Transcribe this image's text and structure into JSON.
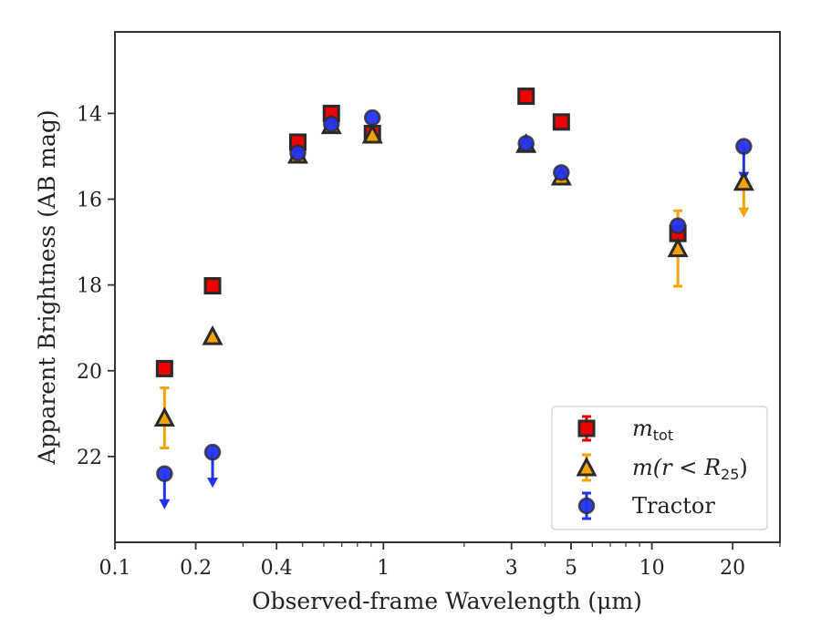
{
  "chart_data": {
    "type": "scatter",
    "xlabel": "Observed-frame Wavelength (μm)",
    "ylabel": "Apparent Brightness (AB mag)",
    "x_scale": "log",
    "xlim": [
      0.1,
      30
    ],
    "ylim": [
      24.0,
      12.1
    ],
    "y_inverted": true,
    "x_ticks": [
      0.1,
      0.2,
      0.4,
      1,
      3,
      5,
      10,
      20
    ],
    "x_tick_labels": [
      "0.1",
      "0.2",
      "0.4",
      "1",
      "3",
      "5",
      "10",
      "20"
    ],
    "y_ticks": [
      14,
      16,
      18,
      20,
      22
    ],
    "y_tick_labels": [
      "14",
      "16",
      "18",
      "20",
      "22"
    ],
    "grid": false,
    "legend_position": "lower-right",
    "legend_entries": [
      {
        "text": "m",
        "subscript": "tot"
      },
      {
        "text": "m(r < R",
        "subscript": "25",
        "suffix": ")"
      },
      {
        "text": "Tractor"
      }
    ],
    "colors": {
      "m_tot": "#ee0000",
      "m_r25": "#f5a300",
      "tractor": "#2233ee",
      "edge": "#2a2a2a"
    },
    "series": [
      {
        "name": "m_tot",
        "marker": "square",
        "points": [
          {
            "x": 0.153,
            "y": 19.95
          },
          {
            "x": 0.231,
            "y": 18.02
          },
          {
            "x": 0.48,
            "y": 14.67
          },
          {
            "x": 0.64,
            "y": 14.0
          },
          {
            "x": 0.91,
            "y": 14.47
          },
          {
            "x": 3.4,
            "y": 13.6
          },
          {
            "x": 4.6,
            "y": 14.2
          },
          {
            "x": 12.5,
            "y": 16.8,
            "yerr": 0.15
          }
        ]
      },
      {
        "name": "m(r<R25)",
        "marker": "triangle",
        "points": [
          {
            "x": 0.153,
            "y": 21.1,
            "yerr": 0.7
          },
          {
            "x": 0.231,
            "y": 19.2
          },
          {
            "x": 0.48,
            "y": 14.97
          },
          {
            "x": 0.64,
            "y": 14.28
          },
          {
            "x": 0.91,
            "y": 14.5
          },
          {
            "x": 3.4,
            "y": 14.72
          },
          {
            "x": 4.6,
            "y": 15.48
          },
          {
            "x": 12.5,
            "y": 17.15,
            "yerr": 0.88
          },
          {
            "x": 22,
            "y": 15.6,
            "upper_limit": true
          }
        ]
      },
      {
        "name": "Tractor",
        "marker": "circle",
        "points": [
          {
            "x": 0.153,
            "y": 22.4,
            "upper_limit": true
          },
          {
            "x": 0.231,
            "y": 21.9,
            "upper_limit": true
          },
          {
            "x": 0.48,
            "y": 14.92
          },
          {
            "x": 0.64,
            "y": 14.25
          },
          {
            "x": 0.91,
            "y": 14.1
          },
          {
            "x": 3.4,
            "y": 14.7
          },
          {
            "x": 4.6,
            "y": 15.38
          },
          {
            "x": 12.5,
            "y": 16.62
          },
          {
            "x": 22,
            "y": 14.77,
            "upper_limit": true
          }
        ]
      }
    ]
  }
}
